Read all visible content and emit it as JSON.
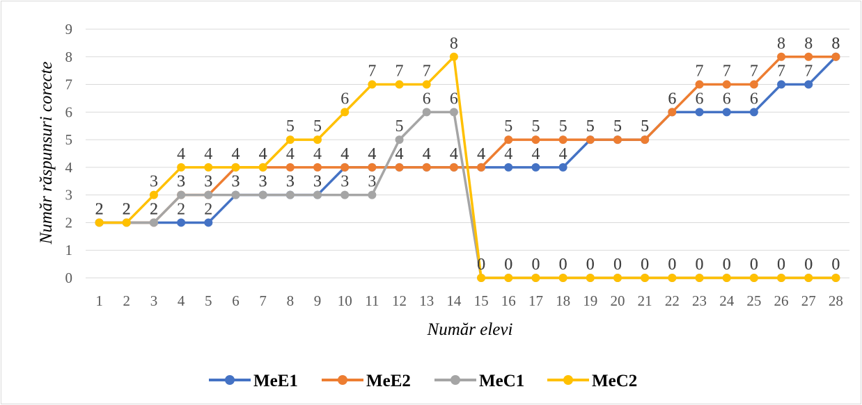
{
  "chart_data": {
    "type": "line",
    "xlabel": "Număr elevi",
    "ylabel": "Număr răspunsuri corecte",
    "ylim": [
      0,
      9
    ],
    "grid": true,
    "legend_position": "bottom",
    "categories": [
      "1",
      "2",
      "3",
      "4",
      "5",
      "6",
      "7",
      "8",
      "9",
      "10",
      "11",
      "12",
      "13",
      "14",
      "15",
      "16",
      "17",
      "18",
      "19",
      "20",
      "21",
      "22",
      "23",
      "24",
      "25",
      "26",
      "27",
      "28"
    ],
    "y_ticks": [
      "0",
      "1",
      "2",
      "3",
      "4",
      "5",
      "6",
      "7",
      "8",
      "9"
    ],
    "series": [
      {
        "name": "MeE1",
        "color": "#4472c4",
        "values": [
          2,
          2,
          2,
          2,
          2,
          3,
          3,
          3,
          3,
          4,
          4,
          4,
          4,
          4,
          4,
          4,
          4,
          4,
          5,
          5,
          5,
          6,
          6,
          6,
          6,
          7,
          7,
          8
        ]
      },
      {
        "name": "MeE2",
        "color": "#ed7d31",
        "values": [
          2,
          2,
          2,
          3,
          3,
          4,
          4,
          4,
          4,
          4,
          4,
          4,
          4,
          4,
          4,
          5,
          5,
          5,
          5,
          5,
          5,
          6,
          7,
          7,
          7,
          8,
          8,
          8
        ]
      },
      {
        "name": "MeC1",
        "color": "#a5a5a5",
        "values": [
          2,
          2,
          2,
          3,
          3,
          3,
          3,
          3,
          3,
          3,
          3,
          5,
          6,
          6,
          0,
          0,
          0,
          0,
          0,
          0,
          0,
          0,
          0,
          0,
          0,
          0,
          0,
          0
        ]
      },
      {
        "name": "MeC2",
        "color": "#ffc000",
        "values": [
          2,
          2,
          3,
          4,
          4,
          4,
          4,
          5,
          5,
          6,
          7,
          7,
          7,
          8,
          0,
          0,
          0,
          0,
          0,
          0,
          0,
          0,
          0,
          0,
          0,
          0,
          0,
          0
        ]
      }
    ],
    "data_labels": [
      "2",
      "2",
      "2",
      "2",
      "2",
      "3",
      "3",
      "3",
      "3",
      "4",
      "4",
      "4",
      "4",
      "4",
      "4",
      "4",
      "4",
      "4",
      "5",
      "5",
      "5",
      "6",
      "6",
      "6",
      "6",
      "7",
      "7",
      "8",
      "2",
      "2",
      "2",
      "3",
      "3",
      "4",
      "4",
      "4",
      "4",
      "4",
      "4",
      "4",
      "4",
      "4",
      "4",
      "5",
      "5",
      "5",
      "5",
      "5",
      "5",
      "6",
      "7",
      "7",
      "7",
      "8",
      "8",
      "8",
      "2",
      "2",
      "2",
      "3",
      "3",
      "3",
      "3",
      "3",
      "3",
      "3",
      "3",
      "5",
      "6",
      "6",
      "0",
      "0",
      "0",
      "0",
      "0",
      "0",
      "0",
      "0",
      "0",
      "0",
      "0",
      "0",
      "0",
      "0",
      "2",
      "2",
      "3",
      "4",
      "4",
      "4",
      "4",
      "5",
      "5",
      "6",
      "7",
      "7",
      "7",
      "8",
      "0",
      "0",
      "0",
      "0",
      "0",
      "0",
      "0",
      "0",
      "0",
      "0",
      "0",
      "0",
      "0",
      "0"
    ]
  }
}
